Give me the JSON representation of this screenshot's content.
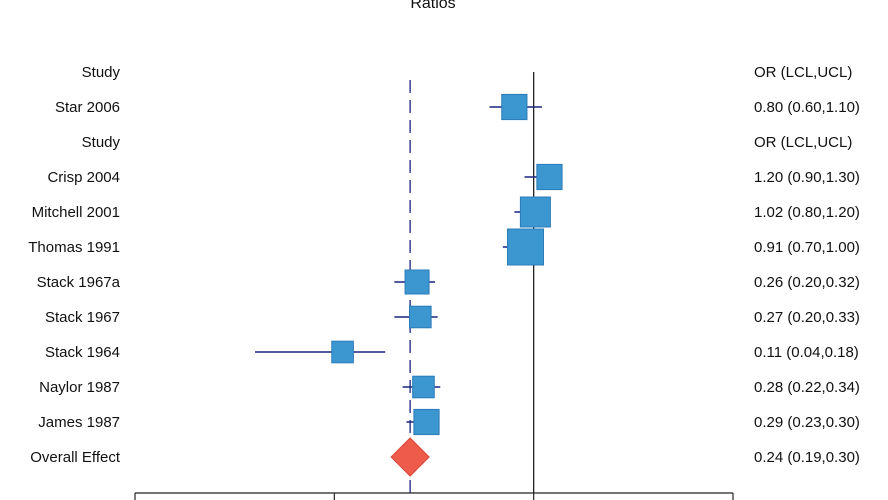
{
  "chart_data": {
    "type": "forest",
    "title": "Ratios",
    "x_scale": "log",
    "reference_line": 1,
    "overall_line": 0.24,
    "header": {
      "study_label": "Study",
      "stat_label": "OR (LCL,UCL)"
    },
    "rows": [
      {
        "kind": "header",
        "study": "Study",
        "ci_text": "OR (LCL,UCL)"
      },
      {
        "kind": "study",
        "study": "Star 2006",
        "or": 0.8,
        "lcl": 0.6,
        "ucl": 1.1,
        "ci_text": "0.80 (0.60,1.10)",
        "weight": 0.55
      },
      {
        "kind": "header",
        "study": "Study",
        "ci_text": "OR (LCL,UCL)"
      },
      {
        "kind": "study",
        "study": "Crisp 2004",
        "or": 1.2,
        "lcl": 0.9,
        "ucl": 1.3,
        "ci_text": "1.20 (0.90,1.30)",
        "weight": 0.55
      },
      {
        "kind": "study",
        "study": "Mitchell 2001",
        "or": 1.02,
        "lcl": 0.8,
        "ucl": 1.2,
        "ci_text": "1.02 (0.80,1.20)",
        "weight": 0.75
      },
      {
        "kind": "study",
        "study": "Thomas 1991",
        "or": 0.91,
        "lcl": 0.7,
        "ucl": 1.0,
        "ci_text": "0.91 (0.70,1.00)",
        "weight": 1.0
      },
      {
        "kind": "study",
        "study": "Stack 1967a",
        "or": 0.26,
        "lcl": 0.2,
        "ucl": 0.32,
        "ci_text": "0.26 (0.20,0.32)",
        "weight": 0.5
      },
      {
        "kind": "study",
        "study": "Stack 1967",
        "or": 0.27,
        "lcl": 0.2,
        "ucl": 0.33,
        "ci_text": "0.27 (0.20,0.33)",
        "weight": 0.4
      },
      {
        "kind": "study",
        "study": "Stack 1964",
        "or": 0.11,
        "lcl": 0.04,
        "ucl": 0.18,
        "ci_text": "0.11 (0.04,0.18)",
        "weight": 0.4
      },
      {
        "kind": "study",
        "study": "Naylor 1987",
        "or": 0.28,
        "lcl": 0.22,
        "ucl": 0.34,
        "ci_text": "0.28 (0.22,0.34)",
        "weight": 0.4
      },
      {
        "kind": "study",
        "study": "James 1987",
        "or": 0.29,
        "lcl": 0.23,
        "ucl": 0.3,
        "ci_text": "0.29 (0.23,0.30)",
        "weight": 0.55
      },
      {
        "kind": "overall",
        "study": "Overall Effect",
        "or": 0.24,
        "lcl": 0.19,
        "ucl": 0.3,
        "ci_text": "0.24 (0.19,0.30)"
      }
    ],
    "xlim": [
      0.01,
      10
    ],
    "colors": {
      "box": "#3c97d0",
      "box_stroke": "#2a7cb8",
      "ci_line": "#1a2480",
      "diamond": "#ef5b4a",
      "axis": "#222222"
    }
  }
}
